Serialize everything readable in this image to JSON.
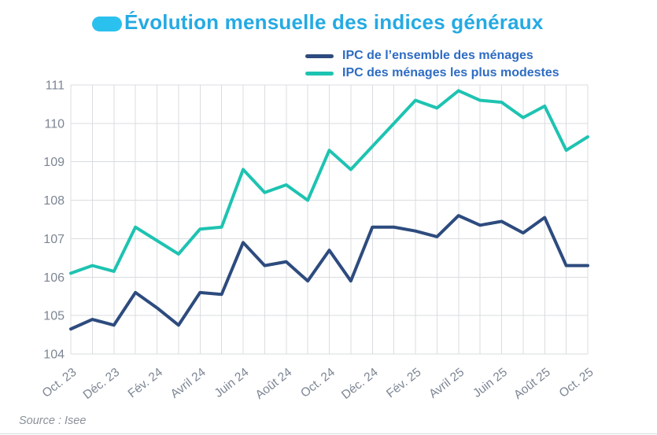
{
  "title": {
    "text": "Évolution mensuelle des indices généraux"
  },
  "legend": {
    "items": [
      {
        "label": "IPC de l’ensemble des ménages",
        "color": "#2d4b7e"
      },
      {
        "label": "IPC des ménages les plus modestes",
        "color": "#1ec3b1"
      }
    ]
  },
  "source": "Source : Isee",
  "colors": {
    "title_text": "#25aae3",
    "title_pill": "#2bc1ef",
    "legend_text": "#2e6cc3",
    "grid": "#d9dcdf",
    "tick_label": "#7d8694",
    "source_text": "#8b9099",
    "background": "#ffffff"
  },
  "chart_data": {
    "type": "line",
    "title": "Évolution mensuelle des indices généraux",
    "n_points": 25,
    "x_tick_labels": [
      "Oct. 23",
      "Déc. 23",
      "Fév. 24",
      "Avril 24",
      "Juin 24",
      "Août 24",
      "Oct. 24",
      "Déc. 24",
      "Fév. 25",
      "Avril 25",
      "Juin 25",
      "Août 25",
      "Oct. 25"
    ],
    "x_tick_indices": [
      0,
      2,
      4,
      6,
      8,
      10,
      12,
      14,
      16,
      18,
      20,
      22,
      24
    ],
    "ylim": [
      104,
      111
    ],
    "yticks": [
      104,
      105,
      106,
      107,
      108,
      109,
      110,
      111
    ],
    "grid": true,
    "legend_position": "top-right",
    "series": [
      {
        "name": "IPC de l’ensemble des ménages",
        "color": "#2d4b7e",
        "values": [
          104.65,
          104.9,
          104.75,
          105.6,
          105.2,
          104.75,
          105.6,
          105.55,
          106.9,
          106.3,
          106.4,
          105.9,
          106.7,
          105.9,
          107.3,
          107.3,
          107.2,
          107.05,
          107.6,
          107.35,
          107.45,
          107.15,
          107.55,
          106.3,
          106.3
        ]
      },
      {
        "name": "IPC des ménages les plus modestes",
        "color": "#1ec3b1",
        "values": [
          106.1,
          106.3,
          106.15,
          107.3,
          106.95,
          106.6,
          107.25,
          107.3,
          108.8,
          108.2,
          108.4,
          108.0,
          109.3,
          108.8,
          109.4,
          110.0,
          110.6,
          110.4,
          110.85,
          110.6,
          110.55,
          110.15,
          110.45,
          109.3,
          109.65
        ]
      }
    ]
  }
}
